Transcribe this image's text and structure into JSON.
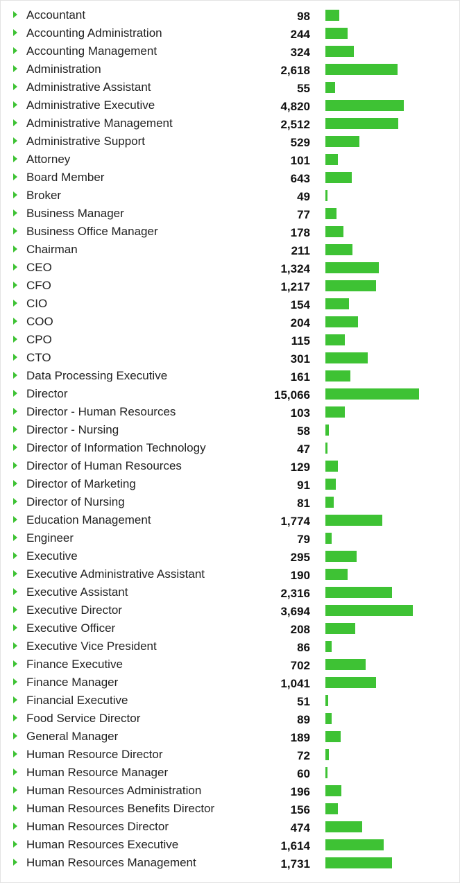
{
  "colors": {
    "bar": "#3ec234",
    "arrow": "#3ec234"
  },
  "icons": {
    "expand": "triangle-right-icon"
  },
  "rows": [
    {
      "label": "Accountant",
      "count": "98",
      "fill": 0.15
    },
    {
      "label": "Accounting Administration",
      "count": "244",
      "fill": 0.24
    },
    {
      "label": "Accounting Management",
      "count": "324",
      "fill": 0.3
    },
    {
      "label": "Administration",
      "count": "2,618",
      "fill": 0.77
    },
    {
      "label": "Administrative Assistant",
      "count": "55",
      "fill": 0.1
    },
    {
      "label": "Administrative Executive",
      "count": "4,820",
      "fill": 0.84
    },
    {
      "label": "Administrative Management",
      "count": "2,512",
      "fill": 0.78
    },
    {
      "label": "Administrative Support",
      "count": "529",
      "fill": 0.36
    },
    {
      "label": "Attorney",
      "count": "101",
      "fill": 0.13
    },
    {
      "label": "Board Member",
      "count": "643",
      "fill": 0.28
    },
    {
      "label": "Broker",
      "count": "49",
      "fill": 0.02
    },
    {
      "label": "Business Manager",
      "count": "77",
      "fill": 0.12
    },
    {
      "label": "Business Office Manager",
      "count": "178",
      "fill": 0.19
    },
    {
      "label": "Chairman",
      "count": "211",
      "fill": 0.29
    },
    {
      "label": "CEO",
      "count": "1,324",
      "fill": 0.57
    },
    {
      "label": "CFO",
      "count": "1,217",
      "fill": 0.54
    },
    {
      "label": "CIO",
      "count": "154",
      "fill": 0.25
    },
    {
      "label": "COO",
      "count": "204",
      "fill": 0.35
    },
    {
      "label": "CPO",
      "count": "115",
      "fill": 0.21
    },
    {
      "label": "CTO",
      "count": "301",
      "fill": 0.45
    },
    {
      "label": "Data Processing Executive",
      "count": "161",
      "fill": 0.27
    },
    {
      "label": "Director",
      "count": "15,066",
      "fill": 1.0
    },
    {
      "label": "Director - Human Resources",
      "count": "103",
      "fill": 0.21
    },
    {
      "label": "Director - Nursing",
      "count": "58",
      "fill": 0.04
    },
    {
      "label": "Director of Information Technology",
      "count": "47",
      "fill": 0.02
    },
    {
      "label": "Director of Human Resources",
      "count": "129",
      "fill": 0.13
    },
    {
      "label": "Director of Marketing",
      "count": "91",
      "fill": 0.11
    },
    {
      "label": "Director of Nursing",
      "count": "81",
      "fill": 0.09
    },
    {
      "label": "Education Management",
      "count": "1,774",
      "fill": 0.61
    },
    {
      "label": "Engineer",
      "count": "79",
      "fill": 0.07
    },
    {
      "label": "Executive",
      "count": "295",
      "fill": 0.33
    },
    {
      "label": "Executive Administrative Assistant",
      "count": "190",
      "fill": 0.24
    },
    {
      "label": "Executive Assistant",
      "count": "2,316",
      "fill": 0.71
    },
    {
      "label": "Executive Director",
      "count": "3,694",
      "fill": 0.93
    },
    {
      "label": "Executive Officer",
      "count": "208",
      "fill": 0.32
    },
    {
      "label": "Executive Vice President",
      "count": "86",
      "fill": 0.07
    },
    {
      "label": "Finance Executive",
      "count": "702",
      "fill": 0.43
    },
    {
      "label": "Finance Manager",
      "count": "1,041",
      "fill": 0.54
    },
    {
      "label": "Financial Executive",
      "count": "51",
      "fill": 0.03
    },
    {
      "label": "Food Service Director",
      "count": "89",
      "fill": 0.07
    },
    {
      "label": "General Manager",
      "count": "189",
      "fill": 0.16
    },
    {
      "label": "Human Resource Director",
      "count": "72",
      "fill": 0.04
    },
    {
      "label": "Human Resource Manager",
      "count": "60",
      "fill": 0.02
    },
    {
      "label": "Human Resources Administration",
      "count": "196",
      "fill": 0.17
    },
    {
      "label": "Human Resources Benefits Director",
      "count": "156",
      "fill": 0.13
    },
    {
      "label": "Human Resources Director",
      "count": "474",
      "fill": 0.39
    },
    {
      "label": "Human Resources Executive",
      "count": "1,614",
      "fill": 0.62
    },
    {
      "label": "Human Resources Management",
      "count": "1,731",
      "fill": 0.71
    }
  ]
}
